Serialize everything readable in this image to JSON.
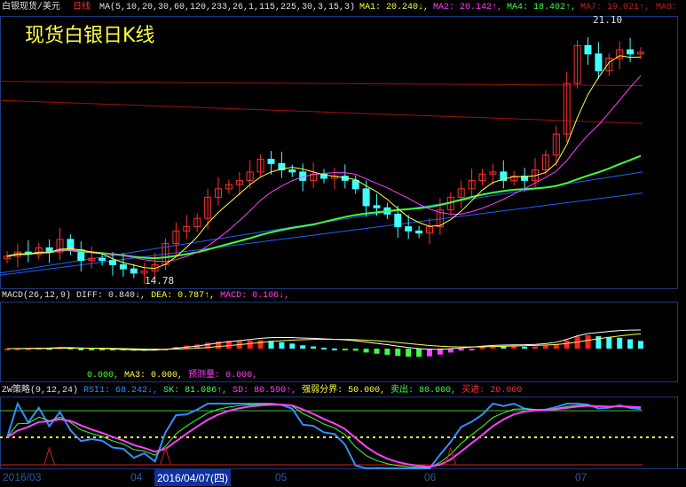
{
  "header": {
    "instrument": "白银现货/美元",
    "period": "日线",
    "ma_params": "MA(5,10,20,30,60,120,233,26,1,115,225,30,3,15,3)",
    "ma1": "MA1: 20.240↓,",
    "ma2": "MA2: 20.142↑,",
    "ma4": "MA4: 18.402↑,",
    "ma7": "MA7: 19.021↑,",
    "ma8": "MA8:"
  },
  "title": "现货白银日K线",
  "macd_header": {
    "name": "MACD(26,12,9)",
    "diff": "DIFF: 0.840↓,",
    "dea": "DEA: 0.787↑,",
    "macd": "MACD: 0.106↓,"
  },
  "zw_header": {
    "line1_a": "0.000,",
    "line1_b": "MA3: 0.000,",
    "line1_c": "预测量: 0.000,",
    "name": "ZW策略(9,12,24)",
    "rsi": "RSI1: 68.242↓,",
    "sk": "SK: 81.086↑,",
    "sd": "SD: 80.590↑,",
    "mid": "强弱分界: 50.000,",
    "sell": "卖出: 80.000,",
    "buy": "买进: 20.000"
  },
  "date_axis": {
    "labels": [
      "2016/03",
      "04",
      "05",
      "06",
      "07"
    ],
    "cursor": "2016/04/07(四)"
  },
  "colors": {
    "up": "#ff3030",
    "down": "#40ffff",
    "ma1": "#ffff40",
    "ma2": "#ff40ff",
    "ma4": "#40ff40",
    "blue": "#2060ff",
    "red": "#a01010"
  },
  "chart_data": {
    "type": "candlestick",
    "max_label": "21.10",
    "min_label": "14.78",
    "ylim": [
      14.64,
      21.48
    ],
    "closes": [
      15.4,
      15.5,
      15.45,
      15.6,
      15.5,
      15.8,
      15.55,
      15.3,
      15.35,
      15.3,
      15.2,
      15.1,
      15.0,
      15.05,
      15.2,
      15.7,
      16.0,
      16.1,
      16.3,
      16.8,
      17.0,
      17.1,
      17.2,
      17.4,
      17.7,
      17.6,
      17.45,
      17.4,
      17.2,
      17.35,
      17.25,
      17.3,
      17.2,
      17.0,
      16.6,
      16.55,
      16.4,
      16.1,
      16.0,
      15.95,
      16.1,
      16.5,
      16.8,
      17.0,
      17.2,
      17.35,
      17.4,
      17.2,
      17.3,
      17.2,
      17.45,
      17.8,
      18.3,
      19.5,
      20.4,
      20.2,
      19.8,
      20.1,
      20.3,
      20.2,
      20.24
    ],
    "long_ma_lines": [
      {
        "color": "#2060ff",
        "from": 15.0,
        "to": 17.4
      },
      {
        "color": "#2060ff",
        "from": 14.95,
        "to": 16.9
      },
      {
        "color": "#a01010",
        "from": 19.55,
        "to": 19.45
      },
      {
        "color": "#a01010",
        "from": 19.1,
        "to": 18.55
      }
    ],
    "zw_levels": {
      "sell": 80,
      "mid": 50,
      "buy": 20
    }
  }
}
